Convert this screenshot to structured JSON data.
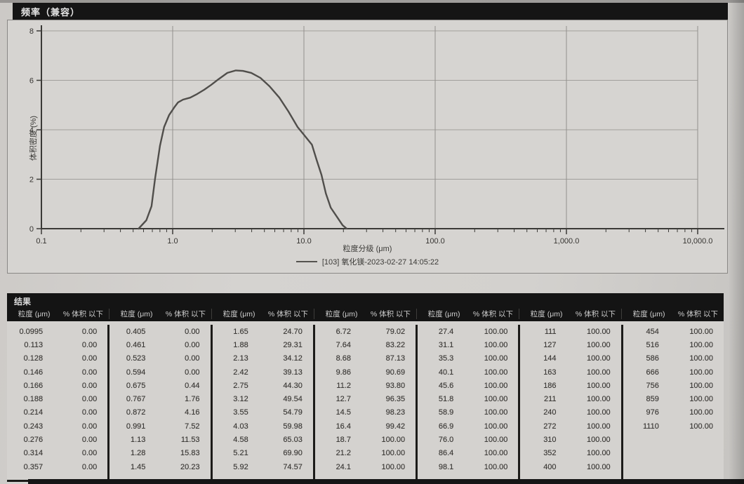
{
  "title_bar": {
    "label": "频率（兼容）"
  },
  "chart_data": {
    "type": "line",
    "title": "频率（兼容）",
    "xlabel": "粒度分级 (μm)",
    "ylabel": "体积密度 (%)",
    "legend": "[103] 氧化镁-2023-02-27 14:05:22",
    "x_scale": "log",
    "xlim": [
      0.1,
      10000
    ],
    "ylim": [
      0,
      8
    ],
    "xticks": [
      "0.1",
      "1.0",
      "10.0",
      "100.0",
      "1,000.0",
      "10,000.0"
    ],
    "yticks": [
      0,
      2,
      4,
      6,
      8
    ],
    "grid": true,
    "legend_position": "bottom-center",
    "curve_color": "#504e4b",
    "curve": [
      [
        0.55,
        0
      ],
      [
        0.63,
        0.34
      ],
      [
        0.69,
        0.91
      ],
      [
        0.735,
        2.04
      ],
      [
        0.8,
        3.35
      ],
      [
        0.86,
        4.11
      ],
      [
        0.94,
        4.6
      ],
      [
        1.03,
        4.91
      ],
      [
        1.1,
        5.11
      ],
      [
        1.2,
        5.22
      ],
      [
        1.36,
        5.3
      ],
      [
        1.54,
        5.45
      ],
      [
        1.74,
        5.62
      ],
      [
        1.97,
        5.82
      ],
      [
        2.23,
        6.04
      ],
      [
        2.61,
        6.3
      ],
      [
        3.03,
        6.4
      ],
      [
        3.43,
        6.38
      ],
      [
        3.97,
        6.3
      ],
      [
        4.66,
        6.1
      ],
      [
        5.47,
        5.76
      ],
      [
        6.5,
        5.3
      ],
      [
        7.62,
        4.74
      ],
      [
        8.95,
        4.11
      ],
      [
        9.89,
        3.83
      ],
      [
        11.5,
        3.4
      ],
      [
        12.5,
        2.78
      ],
      [
        13.6,
        2.18
      ],
      [
        14.7,
        1.42
      ],
      [
        16.0,
        0.85
      ],
      [
        18.1,
        0.43
      ],
      [
        19.7,
        0.14
      ],
      [
        21.2,
        0
      ]
    ]
  },
  "results_table": {
    "title": "结果",
    "col_headers": {
      "size": "粒度 (μm)",
      "pct": "% 体积 以下"
    },
    "groups": [
      [
        [
          "0.0995",
          "0.00"
        ],
        [
          "0.113",
          "0.00"
        ],
        [
          "0.128",
          "0.00"
        ],
        [
          "0.146",
          "0.00"
        ],
        [
          "0.166",
          "0.00"
        ],
        [
          "0.188",
          "0.00"
        ],
        [
          "0.214",
          "0.00"
        ],
        [
          "0.243",
          "0.00"
        ],
        [
          "0.276",
          "0.00"
        ],
        [
          "0.314",
          "0.00"
        ],
        [
          "0.357",
          "0.00"
        ]
      ],
      [
        [
          "0.405",
          "0.00"
        ],
        [
          "0.461",
          "0.00"
        ],
        [
          "0.523",
          "0.00"
        ],
        [
          "0.594",
          "0.00"
        ],
        [
          "0.675",
          "0.44"
        ],
        [
          "0.767",
          "1.76"
        ],
        [
          "0.872",
          "4.16"
        ],
        [
          "0.991",
          "7.52"
        ],
        [
          "1.13",
          "11.53"
        ],
        [
          "1.28",
          "15.83"
        ],
        [
          "1.45",
          "20.23"
        ]
      ],
      [
        [
          "1.65",
          "24.70"
        ],
        [
          "1.88",
          "29.31"
        ],
        [
          "2.13",
          "34.12"
        ],
        [
          "2.42",
          "39.13"
        ],
        [
          "2.75",
          "44.30"
        ],
        [
          "3.12",
          "49.54"
        ],
        [
          "3.55",
          "54.79"
        ],
        [
          "4.03",
          "59.98"
        ],
        [
          "4.58",
          "65.03"
        ],
        [
          "5.21",
          "69.90"
        ],
        [
          "5.92",
          "74.57"
        ]
      ],
      [
        [
          "6.72",
          "79.02"
        ],
        [
          "7.64",
          "83.22"
        ],
        [
          "8.68",
          "87.13"
        ],
        [
          "9.86",
          "90.69"
        ],
        [
          "11.2",
          "93.80"
        ],
        [
          "12.7",
          "96.35"
        ],
        [
          "14.5",
          "98.23"
        ],
        [
          "16.4",
          "99.42"
        ],
        [
          "18.7",
          "100.00"
        ],
        [
          "21.2",
          "100.00"
        ],
        [
          "24.1",
          "100.00"
        ]
      ],
      [
        [
          "27.4",
          "100.00"
        ],
        [
          "31.1",
          "100.00"
        ],
        [
          "35.3",
          "100.00"
        ],
        [
          "40.1",
          "100.00"
        ],
        [
          "45.6",
          "100.00"
        ],
        [
          "51.8",
          "100.00"
        ],
        [
          "58.9",
          "100.00"
        ],
        [
          "66.9",
          "100.00"
        ],
        [
          "76.0",
          "100.00"
        ],
        [
          "86.4",
          "100.00"
        ],
        [
          "98.1",
          "100.00"
        ]
      ],
      [
        [
          "111",
          "100.00"
        ],
        [
          "127",
          "100.00"
        ],
        [
          "144",
          "100.00"
        ],
        [
          "163",
          "100.00"
        ],
        [
          "186",
          "100.00"
        ],
        [
          "211",
          "100.00"
        ],
        [
          "240",
          "100.00"
        ],
        [
          "272",
          "100.00"
        ],
        [
          "310",
          "100.00"
        ],
        [
          "352",
          "100.00"
        ],
        [
          "400",
          "100.00"
        ]
      ],
      [
        [
          "454",
          "100.00"
        ],
        [
          "516",
          "100.00"
        ],
        [
          "586",
          "100.00"
        ],
        [
          "666",
          "100.00"
        ],
        [
          "756",
          "100.00"
        ],
        [
          "859",
          "100.00"
        ],
        [
          "976",
          "100.00"
        ],
        [
          "1110",
          "100.00"
        ]
      ]
    ]
  }
}
